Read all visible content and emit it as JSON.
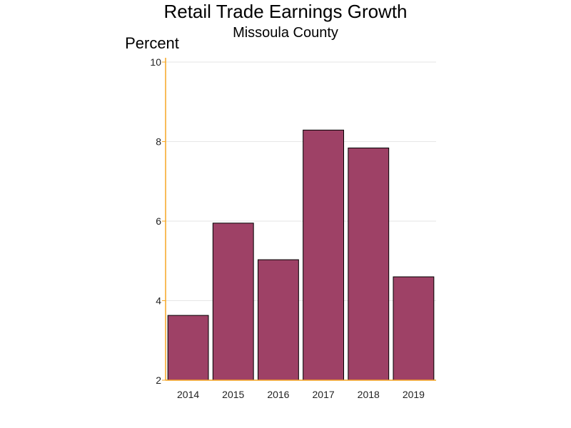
{
  "chart_data": {
    "type": "bar",
    "title": "Retail Trade Earnings Growth",
    "subtitle": "Missoula County",
    "ylabel": "Percent",
    "xlabel": "",
    "categories": [
      "2014",
      "2015",
      "2016",
      "2017",
      "2018",
      "2019"
    ],
    "values": [
      3.63,
      5.95,
      5.03,
      8.29,
      7.84,
      4.6
    ],
    "ylim": [
      2,
      10
    ],
    "yticks": [
      "2",
      "4",
      "6",
      "8",
      "10"
    ],
    "grid": true,
    "bar_color": "#9e4166",
    "axis_color": "#f5a623",
    "grid_color": "#e6e6e6"
  }
}
